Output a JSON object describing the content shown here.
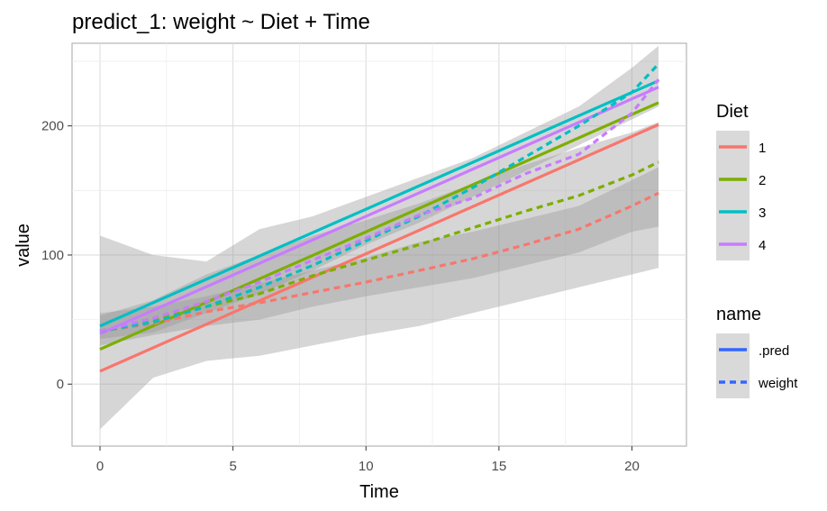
{
  "chart_data": {
    "type": "line",
    "title": "predict_1: weight ~ Diet + Time",
    "xlabel": "Time",
    "ylabel": "value",
    "xlim": [
      -1.05,
      22.05
    ],
    "ylim": [
      -48,
      264
    ],
    "xticks": [
      0,
      5,
      10,
      15,
      20
    ],
    "yticks": [
      0,
      100,
      200
    ],
    "grid": true,
    "legend_placement": "right",
    "legends": [
      {
        "title": "Diet",
        "entries": [
          {
            "label": "1",
            "color": "#F8766D"
          },
          {
            "label": "2",
            "color": "#7CAE00"
          },
          {
            "label": "3",
            "color": "#00BFC4"
          },
          {
            "label": "4",
            "color": "#C77CFF"
          }
        ]
      },
      {
        "title": "name",
        "entries": [
          {
            "label": ".pred",
            "color": "#3366FF",
            "dash": "solid"
          },
          {
            "label": "weight",
            "color": "#3366FF",
            "dash": "dashed"
          }
        ]
      }
    ],
    "series": [
      {
        "name": "1",
        "line": ".pred",
        "color": "#F8766D",
        "x": [
          0,
          21
        ],
        "y": [
          10,
          201
        ],
        "band": {
          "x": [
            0,
            2,
            4,
            6,
            8,
            10,
            12,
            14,
            16,
            18,
            20,
            21
          ],
          "lower": [
            -35,
            5,
            18,
            22,
            30,
            38,
            45,
            55,
            65,
            75,
            85,
            90
          ],
          "upper": [
            53,
            65,
            85,
            100,
            115,
            127,
            140,
            155,
            170,
            183,
            195,
            203
          ]
        }
      },
      {
        "name": "2",
        "line": ".pred",
        "color": "#7CAE00",
        "x": [
          0,
          21
        ],
        "y": [
          27,
          218
        ]
      },
      {
        "name": "3",
        "line": ".pred",
        "color": "#00BFC4",
        "x": [
          0,
          21
        ],
        "y": [
          45,
          235
        ]
      },
      {
        "name": "4",
        "line": ".pred",
        "color": "#C77CFF",
        "x": [
          0,
          21
        ],
        "y": [
          39,
          230
        ]
      },
      {
        "name": "1",
        "line": "weight",
        "color": "#F8766D",
        "x": [
          0,
          2,
          4,
          6,
          8,
          10,
          12,
          14,
          16,
          18,
          20,
          21
        ],
        "y": [
          41,
          47,
          56,
          63,
          71,
          79,
          88,
          97,
          108,
          120,
          138,
          148
        ],
        "band": {
          "x": [
            0,
            2,
            4,
            6,
            8,
            10,
            12,
            14,
            16,
            18,
            20,
            21
          ],
          "lower": [
            30,
            38,
            45,
            50,
            60,
            68,
            75,
            82,
            92,
            102,
            118,
            122
          ],
          "upper": [
            55,
            60,
            68,
            78,
            88,
            98,
            110,
            118,
            128,
            138,
            158,
            168
          ]
        }
      },
      {
        "name": "2",
        "line": "weight",
        "color": "#7CAE00",
        "x": [
          0,
          2,
          4,
          6,
          8,
          10,
          12,
          14,
          16,
          18,
          20,
          21
        ],
        "y": [
          41,
          50,
          60,
          70,
          84,
          96,
          108,
          121,
          134,
          146,
          162,
          172
        ]
      },
      {
        "name": "3",
        "line": "weight",
        "color": "#00BFC4",
        "x": [
          0,
          2,
          4,
          6,
          8,
          10,
          12,
          14,
          16,
          18,
          20,
          21
        ],
        "y": [
          41,
          48,
          60,
          75,
          92,
          111,
          130,
          152,
          176,
          200,
          226,
          248
        ],
        "band": {
          "x": [
            0,
            2,
            4,
            6,
            8,
            10,
            12,
            14,
            16,
            18,
            20,
            21
          ],
          "lower": [
            35,
            40,
            55,
            70,
            88,
            108,
            125,
            145,
            165,
            185,
            205,
            215
          ],
          "upper": [
            115,
            100,
            95,
            120,
            130,
            145,
            160,
            175,
            195,
            215,
            245,
            262
          ]
        }
      },
      {
        "name": "4",
        "line": "weight",
        "color": "#C77CFF",
        "x": [
          0,
          2,
          4,
          6,
          8,
          10,
          12,
          14,
          16,
          18,
          20,
          21
        ],
        "y": [
          41,
          51,
          64,
          79,
          96,
          113,
          131,
          144,
          163,
          178,
          210,
          236
        ]
      }
    ]
  }
}
